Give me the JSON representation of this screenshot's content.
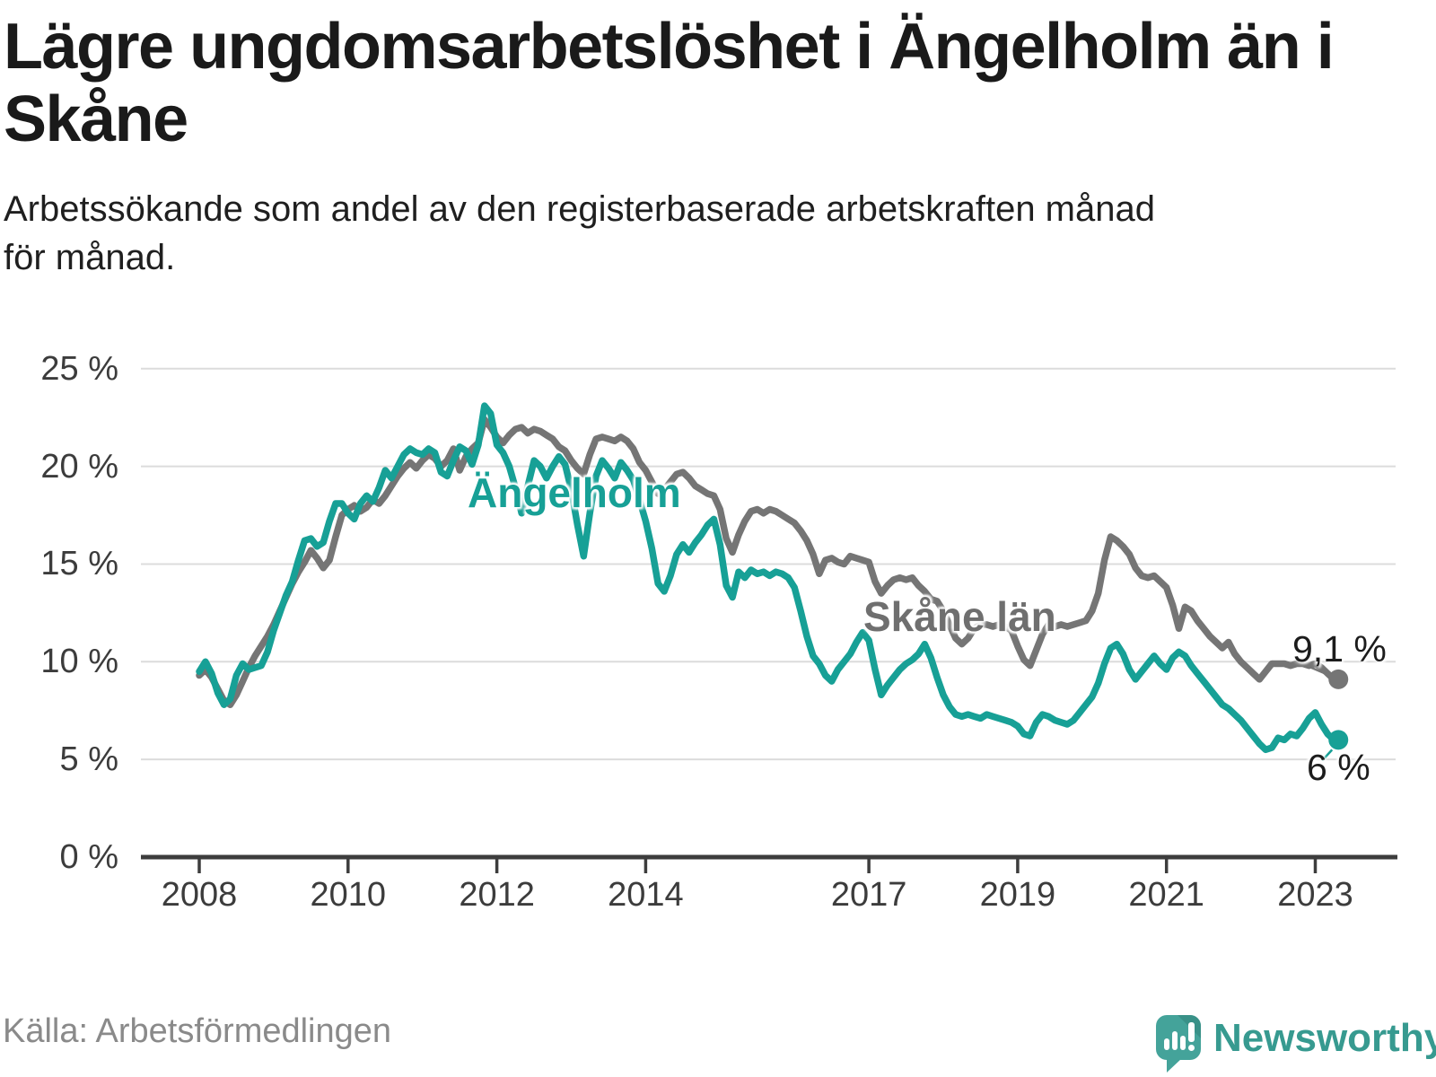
{
  "header": {
    "title": "Lägre ungdomsarbetslöshet i Ängelholm än i\nSkåne",
    "subtitle": "Arbetssökande som andel av den registerbaserade arbetskraften månad\nför månad."
  },
  "footer": {
    "source": "Källa: Arbetsförmedlingen",
    "brand": "Newsworthy"
  },
  "colors": {
    "angelholm": "#17a096",
    "skane": "#757575",
    "grid": "#dcdcdc",
    "axis": "#3d3d3d",
    "title_text": "#1a1a1a",
    "tick_text": "#3c3c3c",
    "source_text": "#8a8a8a",
    "brand_teal": "#44a39a"
  },
  "chart_data": {
    "type": "line",
    "title": "Lägre ungdomsarbetslöshet i Ängelholm än i Skåne",
    "x_unit": "month",
    "x_start": "2008-01",
    "x_end": "2023-04",
    "grid": true,
    "ylim": [
      0,
      25
    ],
    "x_ticks": [
      {
        "year": 2008,
        "label": "2008"
      },
      {
        "year": 2010,
        "label": "2010"
      },
      {
        "year": 2012,
        "label": "2012"
      },
      {
        "year": 2014,
        "label": "2014"
      },
      {
        "year": 2017,
        "label": "2017"
      },
      {
        "year": 2019,
        "label": "2019"
      },
      {
        "year": 2021,
        "label": "2021"
      },
      {
        "year": 2023,
        "label": "2023"
      }
    ],
    "y_ticks": [
      {
        "value": 25,
        "label": "25 %"
      },
      {
        "value": 20,
        "label": "20 %"
      },
      {
        "value": 15,
        "label": "15 %"
      },
      {
        "value": 10,
        "label": "10 %"
      },
      {
        "value": 5,
        "label": "5 %"
      },
      {
        "value": 0,
        "label": "0 %"
      }
    ],
    "series": [
      {
        "name": "Skåne län",
        "color": "#757575",
        "end_label": "9,1 %",
        "end_value": 9.1,
        "values": [
          9.3,
          9.6,
          9.2,
          8.6,
          8.0,
          7.8,
          8.3,
          9.0,
          9.7,
          10.3,
          10.8,
          11.3,
          11.9,
          12.6,
          13.3,
          14.0,
          14.6,
          15.1,
          15.7,
          15.3,
          14.8,
          15.2,
          16.4,
          17.5,
          17.8,
          18.0,
          17.7,
          17.9,
          18.3,
          18.1,
          18.5,
          19.0,
          19.5,
          19.9,
          20.2,
          19.9,
          20.3,
          20.6,
          20.4,
          20.0,
          20.3,
          20.9,
          19.8,
          20.5,
          20.9,
          21.2,
          22.4,
          22.0,
          21.5,
          21.2,
          21.6,
          21.9,
          22.0,
          21.7,
          21.9,
          21.8,
          21.6,
          21.4,
          21.0,
          20.8,
          20.3,
          19.9,
          19.6,
          20.6,
          21.4,
          21.5,
          21.4,
          21.3,
          21.5,
          21.3,
          20.9,
          20.2,
          19.8,
          19.2,
          18.6,
          18.8,
          19.2,
          19.6,
          19.7,
          19.4,
          19.0,
          18.8,
          18.6,
          18.5,
          17.8,
          16.3,
          15.6,
          16.5,
          17.2,
          17.7,
          17.8,
          17.6,
          17.8,
          17.7,
          17.5,
          17.3,
          17.1,
          16.7,
          16.2,
          15.5,
          14.5,
          15.2,
          15.3,
          15.1,
          15.0,
          15.4,
          15.3,
          15.2,
          15.1,
          14.1,
          13.5,
          13.9,
          14.2,
          14.3,
          14.2,
          14.3,
          13.9,
          13.6,
          13.2,
          13.1,
          12.6,
          11.9,
          11.2,
          10.9,
          11.2,
          11.7,
          11.9,
          11.9,
          11.8,
          11.9,
          11.8,
          11.6,
          10.8,
          10.1,
          9.8,
          10.6,
          11.4,
          11.9,
          11.8,
          11.9,
          11.8,
          11.9,
          12.0,
          12.1,
          12.6,
          13.5,
          15.2,
          16.4,
          16.2,
          15.9,
          15.5,
          14.8,
          14.4,
          14.3,
          14.4,
          14.1,
          13.8,
          12.9,
          11.7,
          12.8,
          12.6,
          12.1,
          11.7,
          11.3,
          11.0,
          10.7,
          11.0,
          10.4,
          10.0,
          9.7,
          9.4,
          9.1,
          9.5,
          9.9,
          9.9,
          9.9,
          9.8,
          9.9,
          9.9,
          9.8,
          9.9,
          9.7,
          9.4,
          9.1
        ]
      },
      {
        "name": "Ängelholm",
        "color": "#17a096",
        "end_label": "6 %",
        "end_value": 6.0,
        "values": [
          9.5,
          10.0,
          9.4,
          8.4,
          7.8,
          8.1,
          9.3,
          9.9,
          9.6,
          9.7,
          9.8,
          10.5,
          11.6,
          12.5,
          13.4,
          14.1,
          15.2,
          16.2,
          16.3,
          15.9,
          16.1,
          17.2,
          18.1,
          18.1,
          17.6,
          17.3,
          18.1,
          18.5,
          18.2,
          18.9,
          19.8,
          19.4,
          20.0,
          20.6,
          20.9,
          20.7,
          20.6,
          20.9,
          20.7,
          19.7,
          19.5,
          20.3,
          21.0,
          20.8,
          20.1,
          21.1,
          23.1,
          22.7,
          21.1,
          20.7,
          20.0,
          18.9,
          17.6,
          19.0,
          20.3,
          20.0,
          19.4,
          20.0,
          20.5,
          20.1,
          18.8,
          17.0,
          15.4,
          17.6,
          19.5,
          20.3,
          19.9,
          19.4,
          20.2,
          19.8,
          19.3,
          18.3,
          17.2,
          15.8,
          14.0,
          13.6,
          14.4,
          15.5,
          16.0,
          15.6,
          16.1,
          16.5,
          17.0,
          17.3,
          16.0,
          13.9,
          13.3,
          14.6,
          14.3,
          14.7,
          14.5,
          14.6,
          14.4,
          14.6,
          14.5,
          14.3,
          13.8,
          12.6,
          11.3,
          10.3,
          9.9,
          9.3,
          9.0,
          9.6,
          10.0,
          10.4,
          11.0,
          11.5,
          11.1,
          9.6,
          8.3,
          8.8,
          9.2,
          9.6,
          9.9,
          10.1,
          10.4,
          10.9,
          10.2,
          9.2,
          8.3,
          7.7,
          7.3,
          7.2,
          7.3,
          7.2,
          7.1,
          7.3,
          7.2,
          7.1,
          7.0,
          6.9,
          6.7,
          6.3,
          6.2,
          6.9,
          7.3,
          7.2,
          7.0,
          6.9,
          6.8,
          7.0,
          7.4,
          7.8,
          8.2,
          8.9,
          9.9,
          10.7,
          10.9,
          10.4,
          9.6,
          9.1,
          9.5,
          9.9,
          10.3,
          9.9,
          9.6,
          10.2,
          10.5,
          10.3,
          9.8,
          9.4,
          9.0,
          8.6,
          8.2,
          7.8,
          7.6,
          7.3,
          7.0,
          6.6,
          6.2,
          5.8,
          5.5,
          5.6,
          6.1,
          6.0,
          6.3,
          6.2,
          6.6,
          7.1,
          7.4,
          6.8,
          6.3,
          6.0
        ]
      }
    ]
  }
}
